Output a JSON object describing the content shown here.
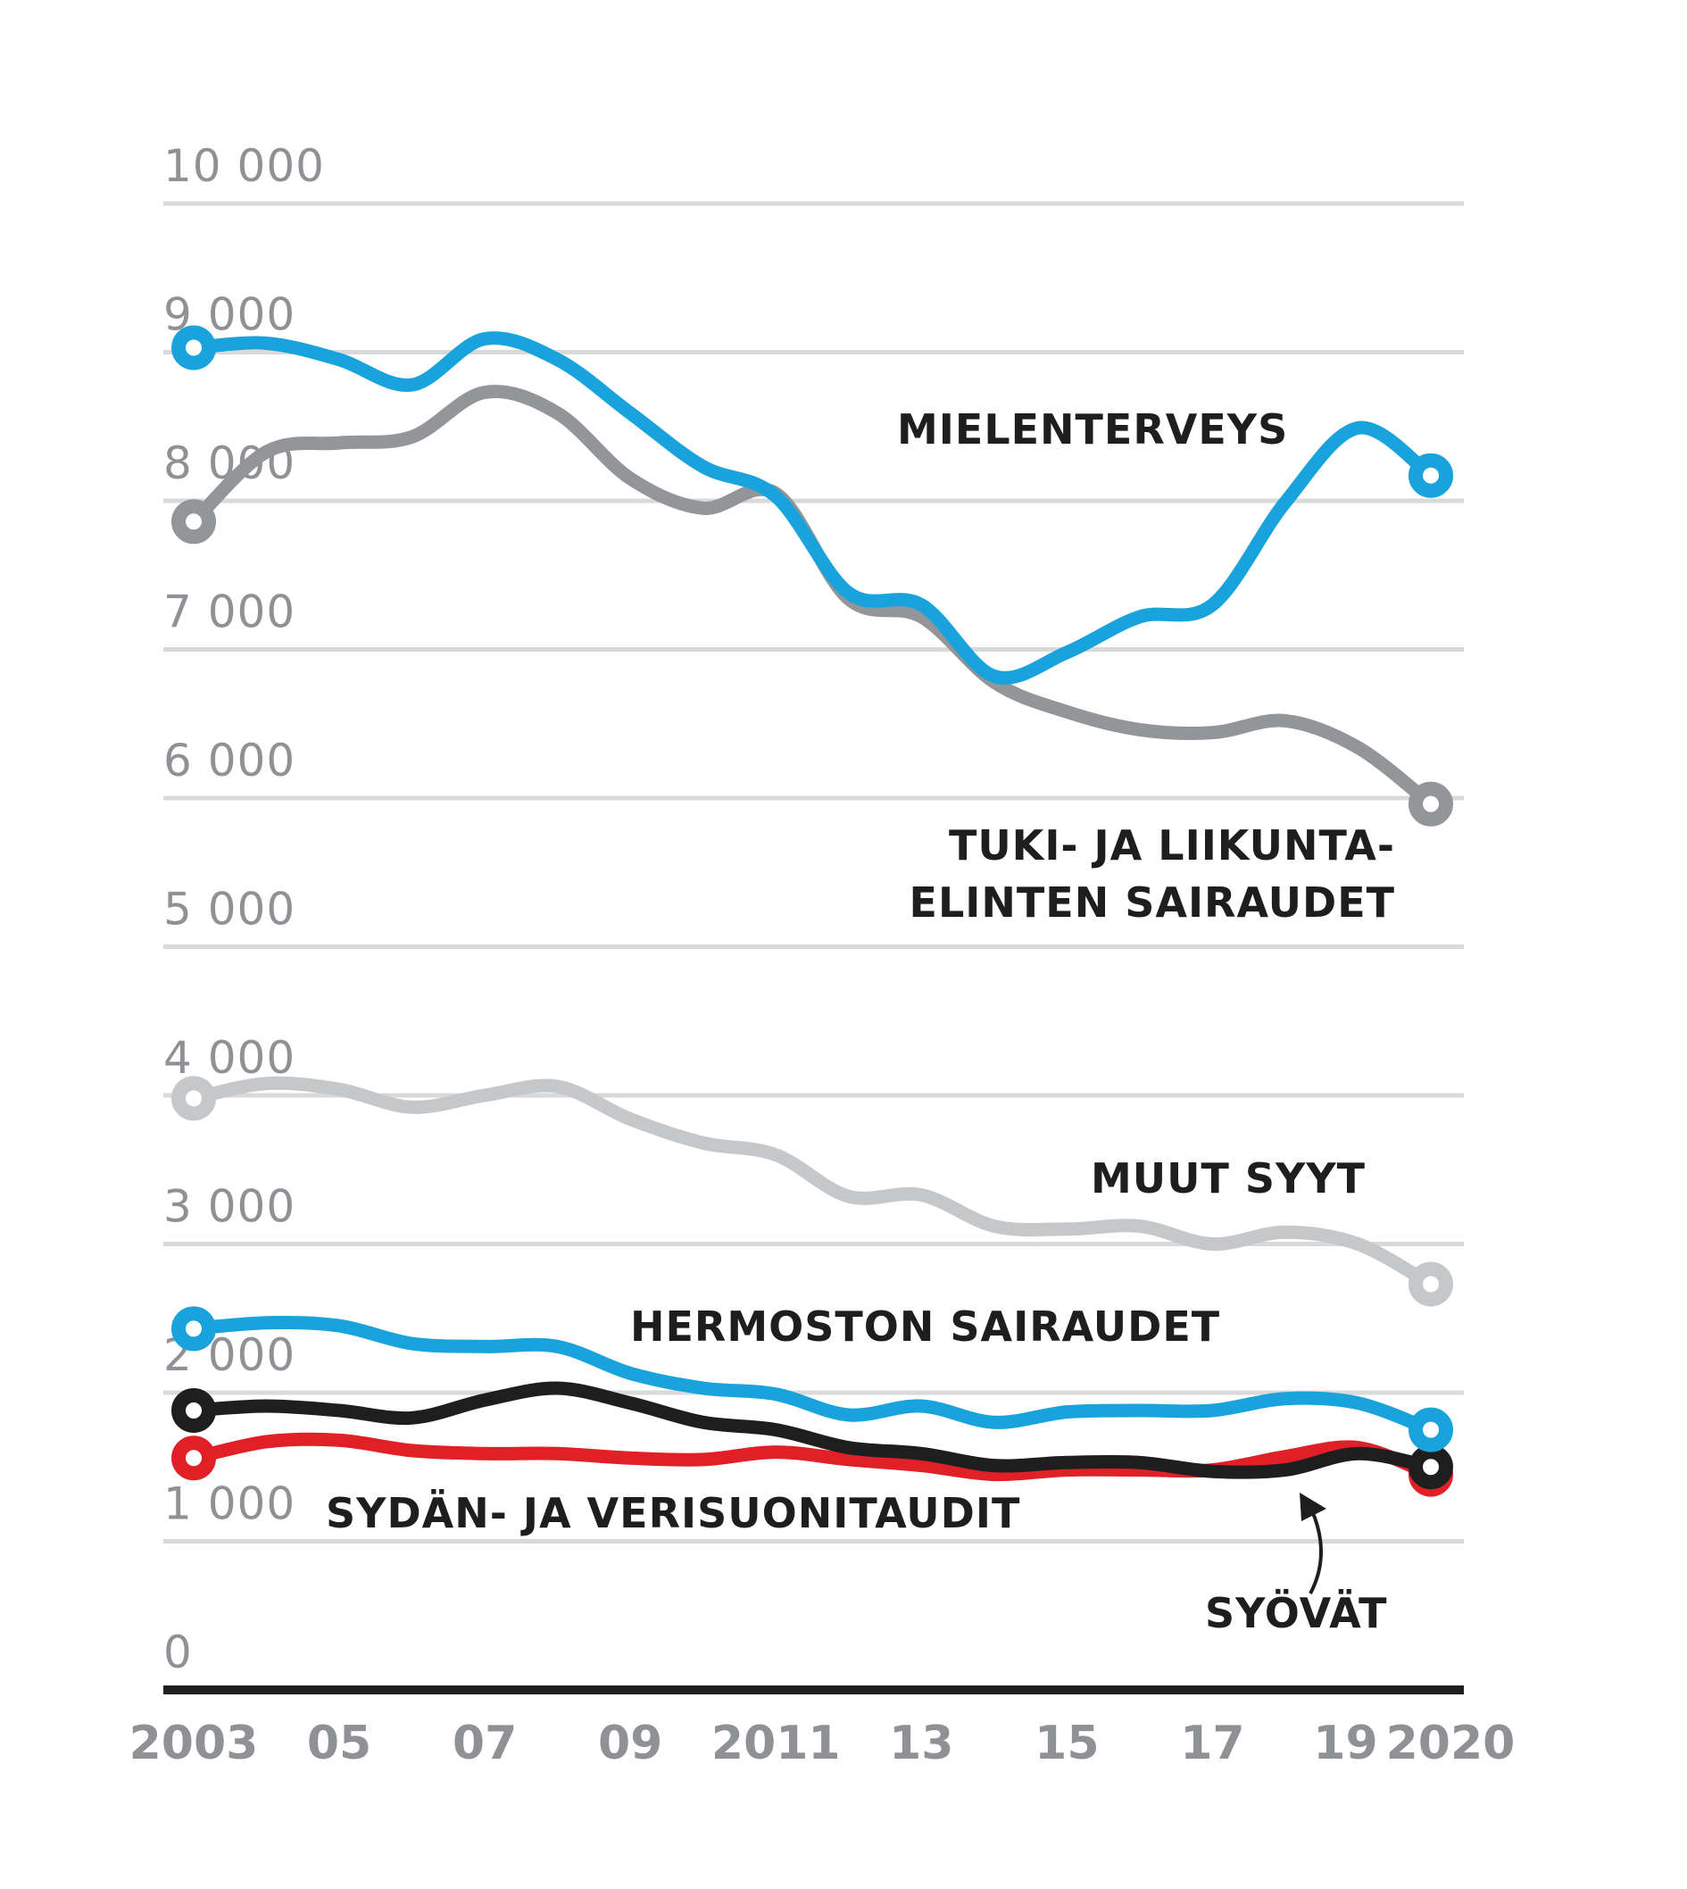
{
  "chart_data": {
    "type": "line",
    "title": "",
    "xlabel": "",
    "ylabel": "",
    "ylim": [
      0,
      10000
    ],
    "grid": true,
    "x": [
      2003,
      2004,
      2005,
      2006,
      2007,
      2008,
      2009,
      2010,
      2011,
      2012,
      2013,
      2014,
      2015,
      2016,
      2017,
      2018,
      2019,
      2020
    ],
    "y_ticks": [
      {
        "value": 10000,
        "label": "10 000"
      },
      {
        "value": 9000,
        "label": "9 000"
      },
      {
        "value": 8000,
        "label": "8 000"
      },
      {
        "value": 7000,
        "label": "7 000"
      },
      {
        "value": 6000,
        "label": "6 000"
      },
      {
        "value": 5000,
        "label": "5 000"
      },
      {
        "value": 4000,
        "label": "4 000"
      },
      {
        "value": 3000,
        "label": "3 000"
      },
      {
        "value": 2000,
        "label": "2 000"
      },
      {
        "value": 1000,
        "label": "1 000"
      },
      {
        "value": 0,
        "label": "0"
      }
    ],
    "x_ticks": [
      {
        "value": 2003,
        "label": "2003"
      },
      {
        "value": 2005,
        "label": "05"
      },
      {
        "value": 2007,
        "label": "07"
      },
      {
        "value": 2009,
        "label": "09"
      },
      {
        "value": 2011,
        "label": "2011"
      },
      {
        "value": 2013,
        "label": "13"
      },
      {
        "value": 2015,
        "label": "15"
      },
      {
        "value": 2017,
        "label": "17"
      },
      {
        "value": 2019,
        "label": "19"
      },
      {
        "value": 2020,
        "label": "2020"
      }
    ],
    "series": [
      {
        "name": "muut-syyt",
        "label_lines": [
          "MUUT SYYT"
        ],
        "color": "#c6c7c9",
        "values": [
          3980,
          4080,
          4040,
          3920,
          4000,
          4060,
          3840,
          3680,
          3600,
          3320,
          3330,
          3120,
          3100,
          3120,
          3000,
          3080,
          3000,
          2730
        ]
      },
      {
        "name": "tuki-ja-liikuntaelinten-sairaudet",
        "label_lines": [
          "TUKI- JA LIIKUNTA-",
          "ELINTEN SAIRAUDET"
        ],
        "color": "#939598",
        "values": [
          7860,
          8330,
          8390,
          8430,
          8730,
          8590,
          8150,
          7950,
          8050,
          7340,
          7220,
          6780,
          6580,
          6460,
          6440,
          6520,
          6340,
          5960
        ]
      },
      {
        "name": "mielenterveys",
        "label_lines": [
          "MIELENTERVEYS"
        ],
        "color": "#19a3dc",
        "values": [
          9030,
          9060,
          8950,
          8780,
          9090,
          8950,
          8590,
          8230,
          8030,
          7380,
          7300,
          6820,
          6980,
          7220,
          7300,
          7990,
          8490,
          8170
        ]
      },
      {
        "name": "sydan-ja-verisuonitaudit",
        "label_lines": [
          "SYDÄN- JA VERISUONITAUDIT"
        ],
        "color": "#e01f26",
        "values": [
          1560,
          1670,
          1680,
          1610,
          1590,
          1590,
          1560,
          1550,
          1600,
          1550,
          1510,
          1450,
          1480,
          1480,
          1480,
          1570,
          1630,
          1450
        ]
      },
      {
        "name": "syovat",
        "label_lines": [
          "SYÖVÄT"
        ],
        "color": "#1e1e1e",
        "values": [
          1880,
          1910,
          1880,
          1830,
          1950,
          2030,
          1930,
          1800,
          1750,
          1630,
          1590,
          1510,
          1530,
          1530,
          1470,
          1480,
          1590,
          1500
        ]
      },
      {
        "name": "hermoston-sairaudet",
        "label_lines": [
          "HERMOSTON SAIRAUDET"
        ],
        "color": "#19a3dc",
        "values": [
          2430,
          2470,
          2450,
          2330,
          2310,
          2310,
          2130,
          2030,
          1990,
          1850,
          1910,
          1800,
          1870,
          1880,
          1880,
          1960,
          1930,
          1750
        ]
      }
    ],
    "colors": {
      "grid": "#d9d9d9",
      "axis": "#1e1e1e",
      "tick_text": "#8f9194",
      "label_text": "#1e1e1e"
    }
  }
}
